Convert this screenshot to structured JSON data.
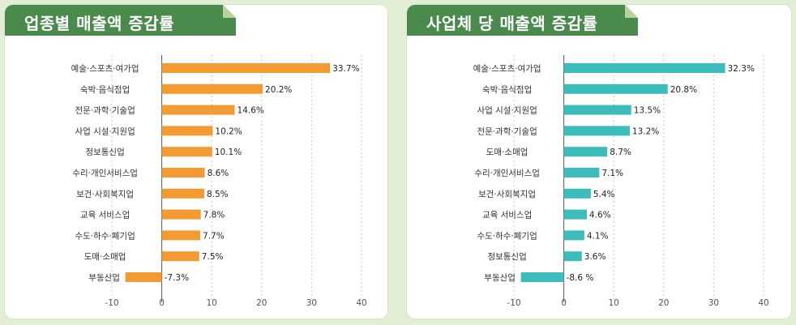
{
  "chart_data": [
    {
      "type": "bar",
      "orientation": "horizontal",
      "title": "업종별 매출액 증감률",
      "categories": [
        "예술·스포츠·여가업",
        "숙박·음식점업",
        "전문·과학·기술업",
        "사업 시설·지원업",
        "정보통신업",
        "수리·개인서비스업",
        "보건·사회복지업",
        "교육 서비스업",
        "수도·하수·폐기업",
        "도매·소매업",
        "부동산업"
      ],
      "values": [
        33.7,
        20.2,
        14.6,
        10.2,
        10.1,
        8.6,
        8.5,
        7.8,
        7.7,
        7.5,
        -7.3
      ],
      "value_labels": [
        "33.7%",
        "20.2%",
        "14.6%",
        "10.2%",
        "10.1%",
        "8.6%",
        "8.5%",
        "7.8%",
        "7.7%",
        "7.5%",
        "-7.3%"
      ],
      "xlim": [
        -10,
        40
      ],
      "xticks": [
        -10,
        0,
        10,
        20,
        30,
        40
      ],
      "grid": "vertical dashed",
      "color": "#f39a33"
    },
    {
      "type": "bar",
      "orientation": "horizontal",
      "title": "사업체 당 매출액 증감률",
      "categories": [
        "예술·스포츠·여가업",
        "숙박·음식점업",
        "사업 시설·지원업",
        "전문·과학·기술업",
        "도매·소매업",
        "수리·개인서비스업",
        "보건·사회복지업",
        "교육 서비스업",
        "수도·하수·폐기업",
        "정보통신업",
        "부동산업"
      ],
      "values": [
        32.3,
        20.8,
        13.5,
        13.2,
        8.7,
        7.1,
        5.4,
        4.6,
        4.1,
        3.6,
        -8.6
      ],
      "value_labels": [
        "32.3%",
        "20.8%",
        "13.5%",
        "13.2%",
        "8.7%",
        "7.1%",
        "5.4%",
        "4.6%",
        "4.1%",
        "3.6%",
        "-8.6 %"
      ],
      "xlim": [
        -10,
        40
      ],
      "xticks": [
        -10,
        0,
        10,
        20,
        30,
        40
      ],
      "grid": "vertical dashed",
      "color": "#3cbdbb"
    }
  ]
}
